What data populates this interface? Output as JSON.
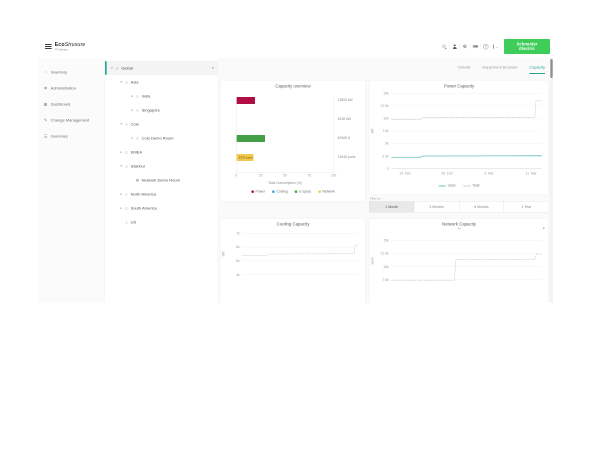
{
  "header": {
    "brand": {
      "eco": "Eco",
      "struxure": "Struxure",
      "subtitle": "IT Advisor"
    },
    "language": "GB",
    "help_glyph": "?",
    "signout_glyph": "→",
    "schneider": {
      "line1": "Schneider",
      "line2": "Electric"
    }
  },
  "sidebar": {
    "items": [
      {
        "icon": "inventory-icon",
        "label": "Inventory"
      },
      {
        "icon": "administration-icon",
        "label": "Administration"
      },
      {
        "icon": "dashboard-icon",
        "label": "Dashboard"
      },
      {
        "icon": "change-management-icon",
        "label": "Change Management"
      },
      {
        "icon": "genomes-icon",
        "label": "Genomes"
      }
    ]
  },
  "tree": {
    "rows": [
      {
        "label": "Global",
        "depth": 0,
        "caret": "expanded",
        "icon": "location",
        "selected": true,
        "menu": true
      },
      {
        "label": "Asia",
        "depth": 1,
        "caret": "expanded",
        "icon": "location",
        "selected": false,
        "menu": false
      },
      {
        "label": "India",
        "depth": 2,
        "caret": "collapsed",
        "icon": "location",
        "selected": false,
        "menu": false
      },
      {
        "label": "Singapore",
        "depth": 2,
        "caret": "collapsed",
        "icon": "location",
        "selected": false,
        "menu": false
      },
      {
        "label": "Colo",
        "depth": 1,
        "caret": "expanded",
        "icon": "location",
        "selected": false,
        "menu": false
      },
      {
        "label": "Colo Demo Room",
        "depth": 2,
        "caret": "collapsed",
        "icon": "location",
        "selected": false,
        "menu": false
      },
      {
        "label": "EMEA",
        "depth": 1,
        "caret": "collapsed",
        "icon": "location",
        "selected": false,
        "menu": false
      },
      {
        "label": "Istanbul",
        "depth": 1,
        "caret": "expanded",
        "icon": "location",
        "selected": false,
        "menu": false
      },
      {
        "label": "Network Demo Room",
        "depth": 2,
        "caret": "none",
        "icon": "room",
        "selected": false,
        "menu": false
      },
      {
        "label": "North America",
        "depth": 1,
        "caret": "collapsed",
        "icon": "location",
        "selected": false,
        "menu": false
      },
      {
        "label": "South America",
        "depth": 1,
        "caret": "collapsed",
        "icon": "location",
        "selected": false,
        "menu": false
      },
      {
        "label": "US",
        "depth": 1,
        "caret": "none",
        "icon": "location",
        "selected": false,
        "menu": false
      }
    ]
  },
  "tabs": {
    "items": [
      "Details",
      "Equipment Browser",
      "Capacity"
    ],
    "active": "Capacity"
  },
  "filter": {
    "label": "Filter by",
    "options": [
      "1 Month",
      "3 Months",
      "6 Months",
      "1 Year"
    ],
    "active": "1 Month"
  },
  "chart_data": [
    {
      "id": "capacity-overview",
      "type": "bar",
      "orientation": "horizontal",
      "title": "Capacity overview",
      "xlabel": "Total Consumption (%)",
      "xlim": [
        0,
        100
      ],
      "xticks": [
        {
          "label": "0",
          "f": 0
        },
        {
          "label": "25",
          "f": 0.25
        },
        {
          "label": "50",
          "f": 0.5
        },
        {
          "label": "75",
          "f": 0.75
        },
        {
          "label": "100",
          "f": 1
        }
      ],
      "bars": [
        {
          "name": "Power",
          "color": "#b00d44",
          "pct": 19,
          "capacity": "13608 kW",
          "bar_label": ""
        },
        {
          "name": "Cooling",
          "color": "#3ba3dd",
          "pct": 0,
          "capacity": "6136 kW",
          "bar_label": ""
        },
        {
          "name": "U space",
          "color": "#43a047",
          "pct": 29,
          "capacity": "82905 U",
          "bar_label": ""
        },
        {
          "name": "Network",
          "color": "#f2c94c",
          "pct": 17,
          "capacity": "13948 ports",
          "bar_label": "2371 ports"
        }
      ],
      "legend": [
        {
          "name": "Power",
          "color": "#b00d44"
        },
        {
          "name": "Cooling",
          "color": "#3ba3dd"
        },
        {
          "name": "U space",
          "color": "#43a047"
        },
        {
          "name": "Network",
          "color": "#f2c94c"
        }
      ]
    },
    {
      "id": "power-capacity",
      "type": "line",
      "title": "Power Capacity",
      "ylabel": "kW",
      "ylim": [
        0,
        15000
      ],
      "yticks": [
        {
          "label": "15k",
          "v": 15000
        },
        {
          "label": "12.5k",
          "v": 12500
        },
        {
          "label": "10k",
          "v": 10000
        },
        {
          "label": "7.5k",
          "v": 7500
        },
        {
          "label": "5k",
          "v": 5000
        },
        {
          "label": "2.5k",
          "v": 2500
        },
        {
          "label": "0",
          "v": 0
        }
      ],
      "xticks": [
        {
          "label": "19. Feb",
          "f": 0.09
        },
        {
          "label": "26. Feb",
          "f": 0.37
        },
        {
          "label": "4. Mar",
          "f": 0.65
        },
        {
          "label": "11. Mar",
          "f": 0.93
        }
      ],
      "legend": [
        {
          "name": "Used",
          "dash": false,
          "color": "#26a69a"
        },
        {
          "name": "Total",
          "dash": true,
          "color": "#b5b5b5"
        }
      ],
      "series": [
        {
          "name": "Total",
          "color": "#b5b5b5",
          "dash": true,
          "points": [
            [
              0,
              9750
            ],
            [
              0.19,
              9750
            ],
            [
              0.21,
              10200
            ],
            [
              0.955,
              10200
            ],
            [
              0.96,
              13500
            ],
            [
              1,
              13500
            ]
          ]
        },
        {
          "name": "Used",
          "color": "#26a69a",
          "dash": false,
          "points": [
            [
              0,
              2250
            ],
            [
              0.19,
              2250
            ],
            [
              0.21,
              2520
            ],
            [
              1,
              2560
            ]
          ]
        }
      ]
    },
    {
      "id": "cooling-capacity",
      "type": "line",
      "title": "Cooling Capacity",
      "ylabel": "kW",
      "ylim": [
        3500,
        7500
      ],
      "yticks": [
        {
          "label": "7k",
          "v": 7000
        },
        {
          "label": "6k",
          "v": 6000
        },
        {
          "label": "5k",
          "v": 5000
        },
        {
          "label": "4k",
          "v": 4000
        }
      ],
      "xticks": [],
      "legend": [],
      "series": [
        {
          "name": "Total",
          "color": "#b5b5b5",
          "dash": true,
          "points": [
            [
              0,
              5380
            ],
            [
              0.2,
              5380
            ],
            [
              0.23,
              5500
            ],
            [
              0.96,
              5520
            ],
            [
              0.97,
              6150
            ],
            [
              1,
              6150
            ]
          ]
        }
      ]
    },
    {
      "id": "network-capacity",
      "type": "line",
      "title": "Network Capacity",
      "subtitle": "All",
      "ylabel": "ports",
      "ylim": [
        6250,
        16000
      ],
      "yticks": [
        {
          "label": "15k",
          "v": 15000
        },
        {
          "label": "12.5k",
          "v": 12500
        },
        {
          "label": "10k",
          "v": 10000
        },
        {
          "label": "7.5k",
          "v": 7500
        }
      ],
      "xticks": [],
      "legend": [],
      "series": [
        {
          "name": "Total",
          "color": "#b5b5b5",
          "dash": true,
          "points": [
            [
              0,
              7350
            ],
            [
              0.42,
              7350
            ],
            [
              0.43,
              11400
            ],
            [
              0.955,
              11400
            ],
            [
              0.965,
              12400
            ],
            [
              1,
              12400
            ]
          ]
        }
      ]
    }
  ]
}
